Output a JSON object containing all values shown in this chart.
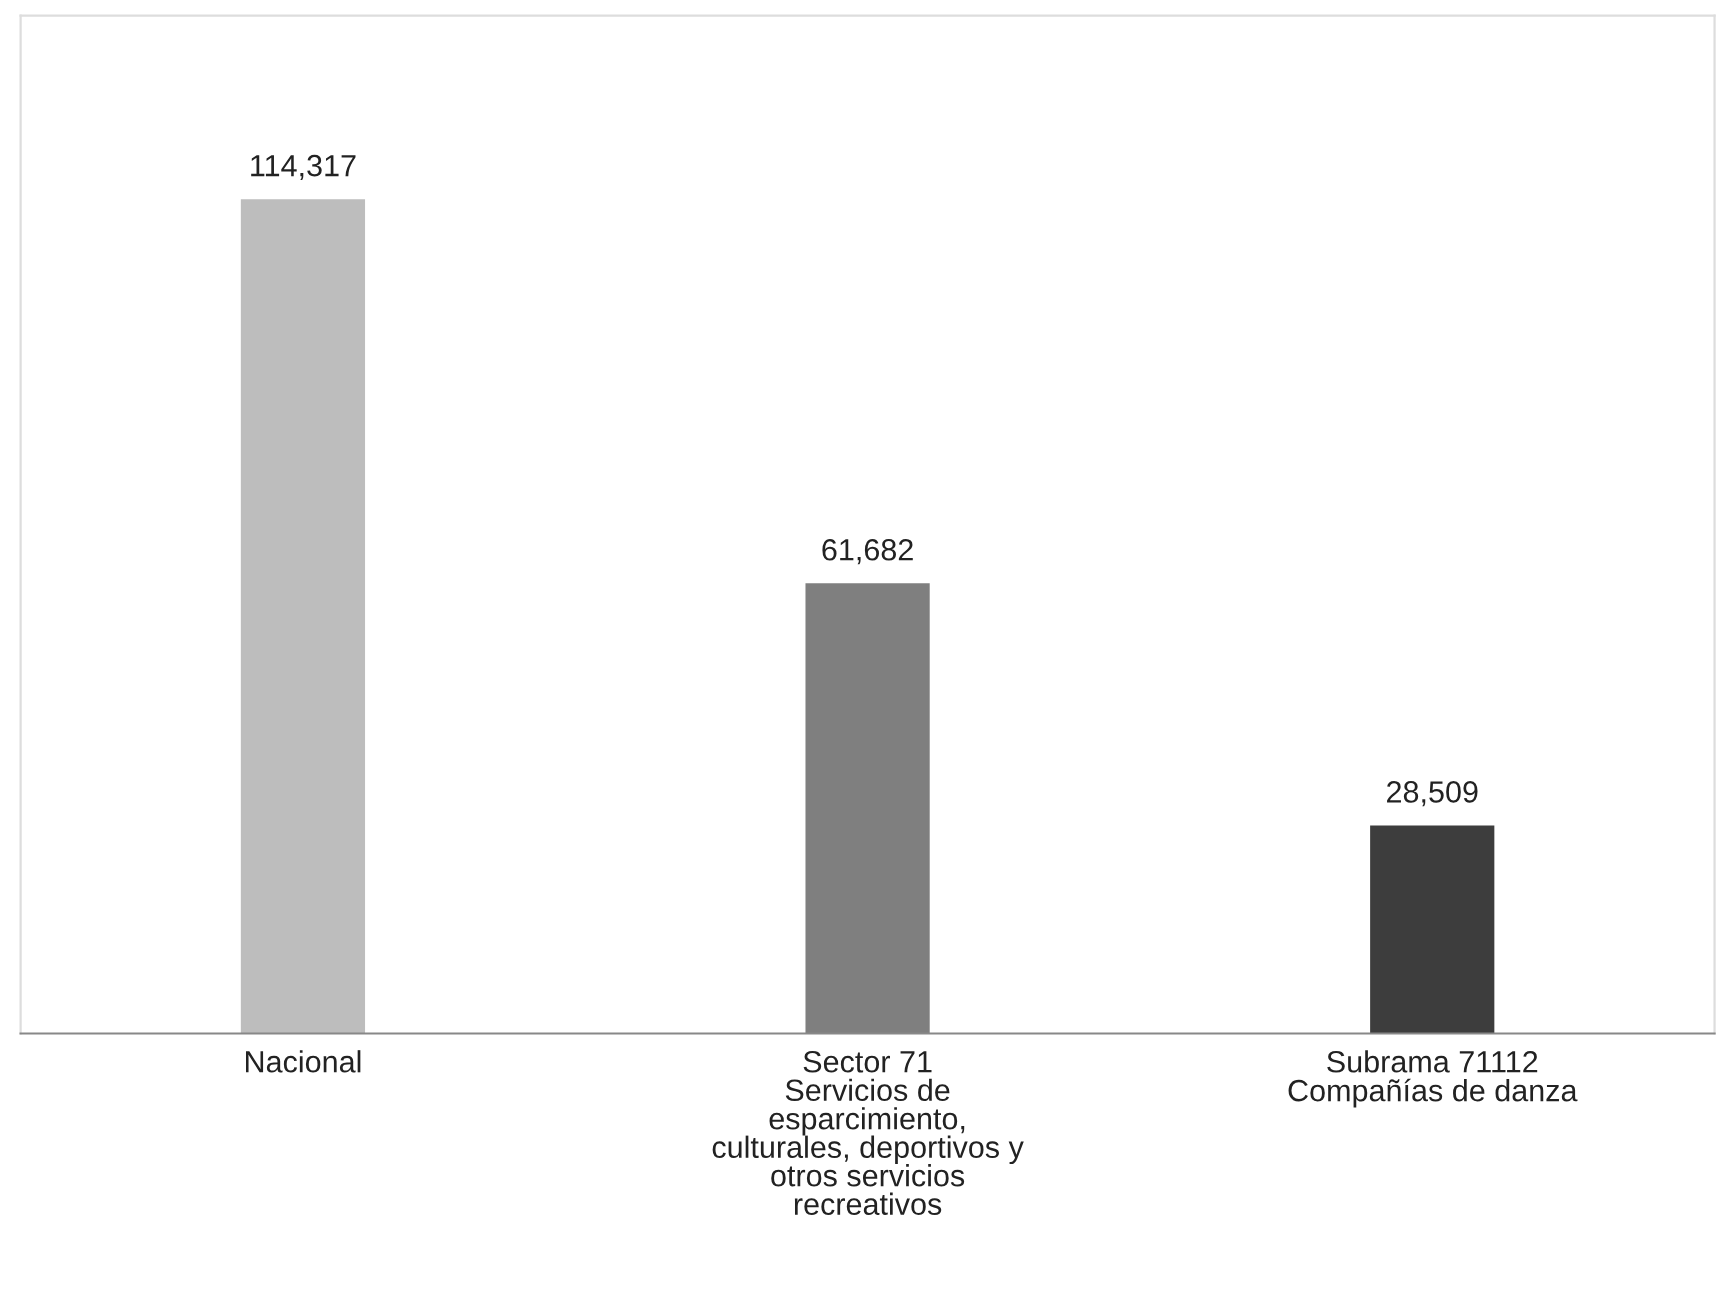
{
  "chart_data": {
    "type": "bar",
    "categories": [
      "Nacional",
      "Sector 71\nServicios de\nesparcimiento,\nculturales, deportivos y\notros servicios\nrecreativos",
      "Subrama 71112\nCompañías de danza"
    ],
    "values": [
      114317,
      61682,
      28509
    ],
    "colors": [
      "#bdbdbd",
      "#7f7f7f",
      "#3d3d3d"
    ],
    "value_labels": [
      "114,317",
      "61,682",
      "28,509"
    ],
    "grid": false,
    "legend": false
  }
}
